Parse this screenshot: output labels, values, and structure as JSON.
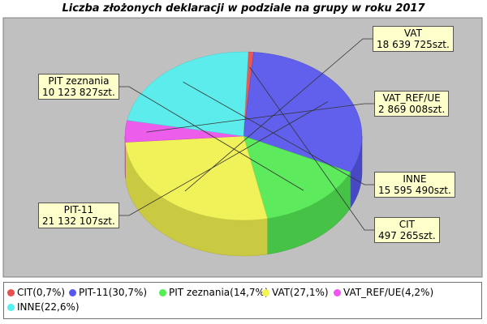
{
  "chart_data": {
    "type": "pie",
    "title": "Liczba złożonych deklaracji w podziale na grupy w roku 2017",
    "slices": [
      {
        "name": "CIT",
        "value": 497265,
        "value_label": "497 265szt.",
        "legend": "CIT(0,7%)",
        "color": "#e85050"
      },
      {
        "name": "PIT-11",
        "value": 21132107,
        "value_label": "21 132 107szt.",
        "legend": "PIT-11(30,7%)",
        "color": "#5858f0"
      },
      {
        "name": "PIT zeznania",
        "value": 10123827,
        "value_label": "10 123 827szt.",
        "legend": "PIT zeznania(14,7%)",
        "color": "#55ee55"
      },
      {
        "name": "VAT",
        "value": 18639725,
        "value_label": "18 639 725szt.",
        "legend": "VAT(27,1%)",
        "color": "#f5f550"
      },
      {
        "name": "VAT_REF/UE",
        "value": 2869008,
        "value_label": "2 869 008szt.",
        "legend": "VAT_REF/UE(4,2%)",
        "color": "#f055f0"
      },
      {
        "name": "INNE",
        "value": 15595490,
        "value_label": "15 595 490szt.",
        "legend": "INNE(22,6%)",
        "color": "#55f0f0"
      }
    ],
    "legend_position": "bottom"
  }
}
